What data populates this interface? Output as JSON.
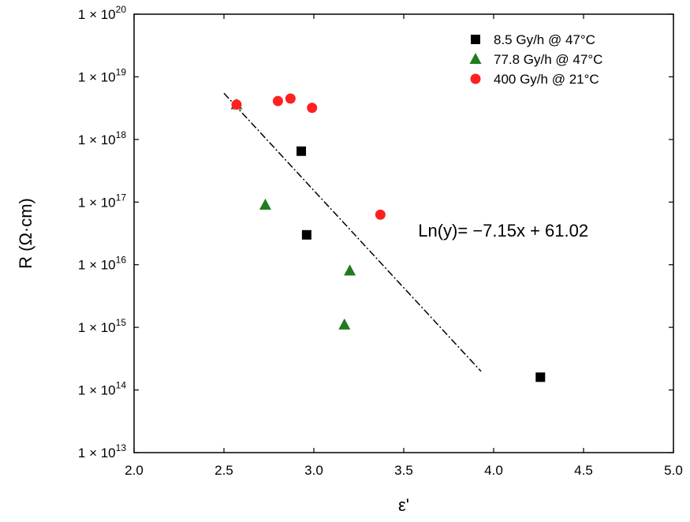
{
  "chart_data": {
    "type": "scatter",
    "title": "",
    "xlabel": "ε'",
    "ylabel": "R (Ω·cm)",
    "xlim": [
      2.0,
      5.0
    ],
    "ylim": [
      10000000000000.0,
      1e+20
    ],
    "y_scale": "log",
    "x_ticks": [
      "2.0",
      "2.5",
      "3.0",
      "3.5",
      "4.0",
      "4.5",
      "5.0"
    ],
    "y_ticks": [
      {
        "base": "1 × 10",
        "exp": "13",
        "value": 10000000000000.0
      },
      {
        "base": "1 × 10",
        "exp": "14",
        "value": 100000000000000.0
      },
      {
        "base": "1 × 10",
        "exp": "15",
        "value": 1000000000000000.0
      },
      {
        "base": "1 × 10",
        "exp": "16",
        "value": 1e+16
      },
      {
        "base": "1 × 10",
        "exp": "17",
        "value": 1e+17
      },
      {
        "base": "1 × 10",
        "exp": "18",
        "value": 1e+18
      },
      {
        "base": "1 × 10",
        "exp": "19",
        "value": 1e+19
      },
      {
        "base": "1 × 10",
        "exp": "20",
        "value": 1e+20
      }
    ],
    "grid": false,
    "legend_position": "top-right",
    "series": [
      {
        "name": "8.5 Gy/h @ 47°C",
        "marker": "square",
        "color": "#000000",
        "points": [
          [
            2.93,
            6.5e+17
          ],
          [
            2.96,
            3e+16
          ],
          [
            4.26,
            160000000000000.0
          ]
        ]
      },
      {
        "name": "77.8 Gy/h @ 47°C",
        "marker": "triangle",
        "color": "#1e7b1e",
        "points": [
          [
            2.57,
            3.6e+18
          ],
          [
            2.73,
            9e+16
          ],
          [
            3.2,
            8000000000000000.0
          ],
          [
            3.17,
            1100000000000000.0
          ]
        ]
      },
      {
        "name": "400 Gy/h @ 21°C",
        "marker": "circle",
        "color": "#ff2020",
        "points": [
          [
            2.57,
            3.6e+18
          ],
          [
            2.8,
            4.1e+18
          ],
          [
            2.87,
            4.5e+18
          ],
          [
            2.99,
            3.2e+18
          ],
          [
            3.37,
            6.3e+16
          ]
        ]
      }
    ],
    "fit_line": {
      "style": "dash-dot",
      "color": "#000000",
      "x_range": [
        2.5,
        3.93
      ],
      "slope_ln": -7.15,
      "intercept_ln": 61.02
    },
    "annotation": {
      "text": "Ln(y)= −7.15x + 61.02",
      "x": 3.58,
      "y": 2.8e+16
    }
  }
}
